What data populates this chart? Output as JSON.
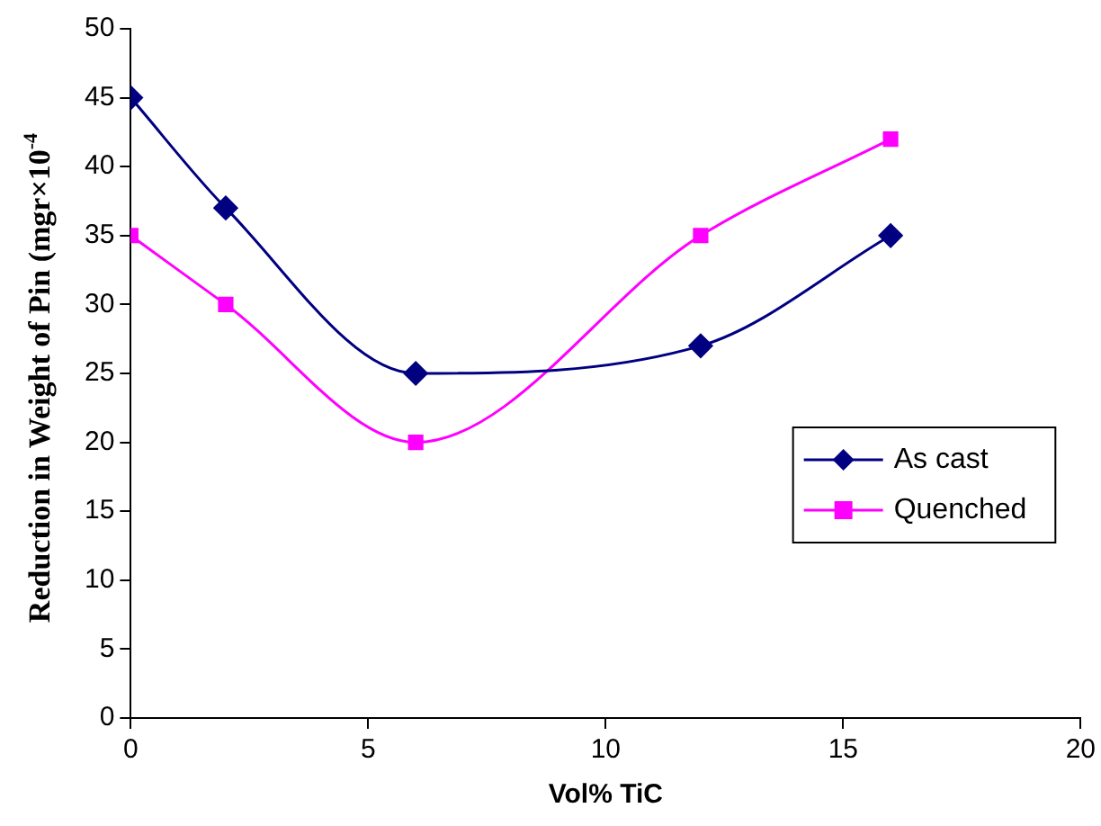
{
  "chart_data": {
    "type": "line",
    "xlabel": "Vol% TiC",
    "ylabel": "Reduction in Weight of Pin (mgr×10$^{-4}$",
    "x": [
      0,
      2,
      6,
      12,
      16
    ],
    "series": [
      {
        "name": "As cast",
        "color": "#000080",
        "values": [
          45,
          37,
          25,
          27,
          35
        ],
        "marker": "diamond"
      },
      {
        "name": "Quenched",
        "color": "#ff00ff",
        "values": [
          35,
          30,
          20,
          35,
          42
        ],
        "marker": "square"
      }
    ],
    "xlim": [
      0,
      20
    ],
    "xticks": [
      0,
      5,
      10,
      15,
      20
    ],
    "ylim": [
      0,
      50
    ],
    "yticks": [
      0,
      5,
      10,
      15,
      20,
      25,
      30,
      35,
      40,
      45,
      50
    ],
    "grid": false,
    "legend": "right",
    "line_style": "solid"
  }
}
